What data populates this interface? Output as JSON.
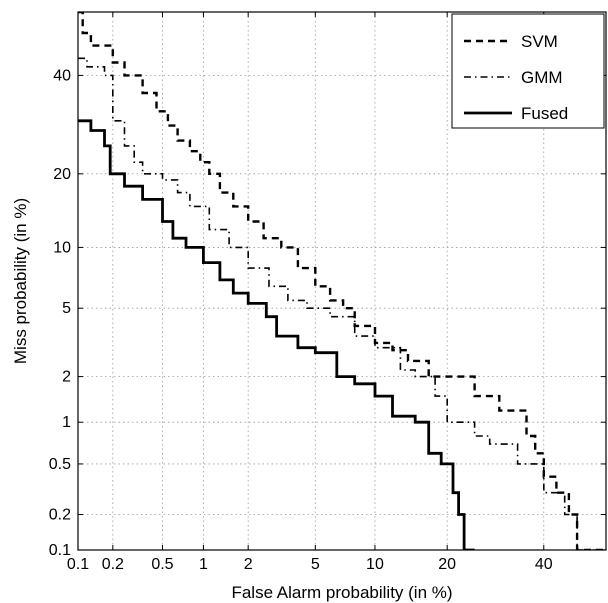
{
  "chart_data": {
    "type": "line",
    "title": "",
    "xlabel": "False Alarm probability (in %)",
    "ylabel": "Miss probability (in %)",
    "xscale": "probit",
    "yscale": "probit",
    "xlim": [
      0.1,
      55
    ],
    "ylim": [
      0.1,
      55
    ],
    "xticks": [
      0.1,
      0.2,
      0.5,
      1,
      2,
      5,
      10,
      20,
      40
    ],
    "xtick_labels": [
      "0.1",
      "0.2",
      "0.5",
      "1",
      "2",
      "5",
      "10",
      "20",
      "40"
    ],
    "yticks": [
      0.1,
      0.2,
      0.5,
      1,
      2,
      5,
      10,
      20,
      40
    ],
    "ytick_labels": [
      "0.1",
      "0.2",
      "0.5",
      "1",
      "2",
      "5",
      "10",
      "20",
      "40"
    ],
    "grid": true,
    "legend_position": "top-right",
    "series": [
      {
        "name": "SVM",
        "style": "dashed",
        "color": "#000000",
        "points": [
          [
            0.1,
            55
          ],
          [
            0.11,
            50
          ],
          [
            0.13,
            47
          ],
          [
            0.2,
            43
          ],
          [
            0.25,
            40
          ],
          [
            0.35,
            36
          ],
          [
            0.45,
            32
          ],
          [
            0.55,
            29
          ],
          [
            0.65,
            26
          ],
          [
            0.8,
            24
          ],
          [
            0.95,
            22
          ],
          [
            1.1,
            20
          ],
          [
            1.3,
            17
          ],
          [
            1.6,
            15
          ],
          [
            2,
            13
          ],
          [
            2.5,
            11
          ],
          [
            3.2,
            10
          ],
          [
            4,
            8
          ],
          [
            5,
            6.5
          ],
          [
            6,
            5.5
          ],
          [
            7,
            5
          ],
          [
            8,
            4
          ],
          [
            10,
            3.2
          ],
          [
            12,
            2.9
          ],
          [
            14,
            2.5
          ],
          [
            17,
            2
          ],
          [
            22,
            2
          ],
          [
            25,
            1.5
          ],
          [
            28,
            1.5
          ],
          [
            30,
            1.2
          ],
          [
            34,
            1.2
          ],
          [
            36,
            0.8
          ],
          [
            38,
            0.6
          ],
          [
            40,
            0.4
          ],
          [
            43,
            0.3
          ],
          [
            46,
            0.2
          ],
          [
            48,
            0.1
          ],
          [
            55,
            0.1
          ]
        ]
      },
      {
        "name": "GMM",
        "style": "dashdot",
        "color": "#000000",
        "points": [
          [
            0.1,
            44
          ],
          [
            0.12,
            42
          ],
          [
            0.17,
            40
          ],
          [
            0.2,
            30
          ],
          [
            0.25,
            25
          ],
          [
            0.3,
            22
          ],
          [
            0.35,
            20
          ],
          [
            0.5,
            19
          ],
          [
            0.65,
            17
          ],
          [
            0.8,
            15
          ],
          [
            1.1,
            12
          ],
          [
            1.5,
            10
          ],
          [
            2,
            8
          ],
          [
            2.7,
            6.5
          ],
          [
            3.5,
            5.5
          ],
          [
            4.5,
            5
          ],
          [
            6,
            4.5
          ],
          [
            8,
            3.5
          ],
          [
            10,
            3
          ],
          [
            13,
            2.2
          ],
          [
            15,
            2
          ],
          [
            18,
            1.5
          ],
          [
            20,
            1
          ],
          [
            25,
            0.8
          ],
          [
            28,
            0.7
          ],
          [
            32,
            0.7
          ],
          [
            34,
            0.5
          ],
          [
            40,
            0.3
          ],
          [
            45,
            0.2
          ],
          [
            48,
            0.1
          ],
          [
            55,
            0.1
          ]
        ]
      },
      {
        "name": "Fused",
        "style": "solid",
        "color": "#000000",
        "points": [
          [
            0.1,
            30
          ],
          [
            0.13,
            28
          ],
          [
            0.17,
            25
          ],
          [
            0.19,
            20
          ],
          [
            0.25,
            18
          ],
          [
            0.35,
            16
          ],
          [
            0.5,
            13
          ],
          [
            0.6,
            11
          ],
          [
            0.75,
            10
          ],
          [
            1,
            8.5
          ],
          [
            1.3,
            7
          ],
          [
            1.6,
            6
          ],
          [
            2,
            5.3
          ],
          [
            2.6,
            4.5
          ],
          [
            3,
            3.5
          ],
          [
            4,
            3
          ],
          [
            5,
            2.8
          ],
          [
            6.5,
            2
          ],
          [
            8,
            1.8
          ],
          [
            10,
            1.5
          ],
          [
            12,
            1.1
          ],
          [
            15,
            1
          ],
          [
            17,
            0.6
          ],
          [
            19,
            0.5
          ],
          [
            21,
            0.3
          ],
          [
            22,
            0.2
          ],
          [
            23,
            0.1
          ],
          [
            25,
            0.1
          ]
        ]
      }
    ]
  }
}
